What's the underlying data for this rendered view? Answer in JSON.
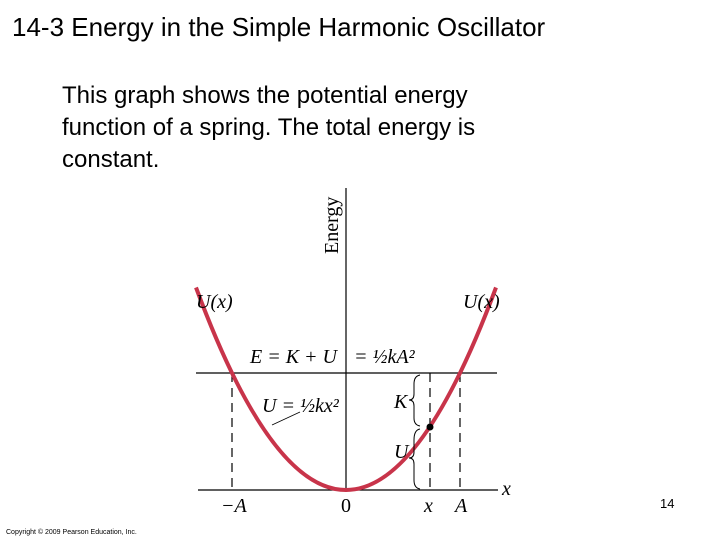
{
  "header": {
    "title": "14-3 Energy in the Simple Harmonic Oscillator"
  },
  "body": {
    "lines": [
      "This graph shows the potential energy",
      "function of a spring. The total energy is",
      "constant."
    ]
  },
  "figure": {
    "y_axis_label": "Energy",
    "x_axis_label": "x",
    "curve_label_left": "U(x)",
    "curve_label_right": "U(x)",
    "total_energy_label": "E = K + U",
    "total_energy_value": "= ½kA²",
    "potential_label": "U = ½kx²",
    "kinetic_brace": "K",
    "potential_brace": "U",
    "x_ticks": [
      "−A",
      "0",
      "x",
      "A"
    ]
  },
  "footer": {
    "page_number": "14",
    "copyright": "Copyright © 2009 Pearson Education, Inc."
  }
}
